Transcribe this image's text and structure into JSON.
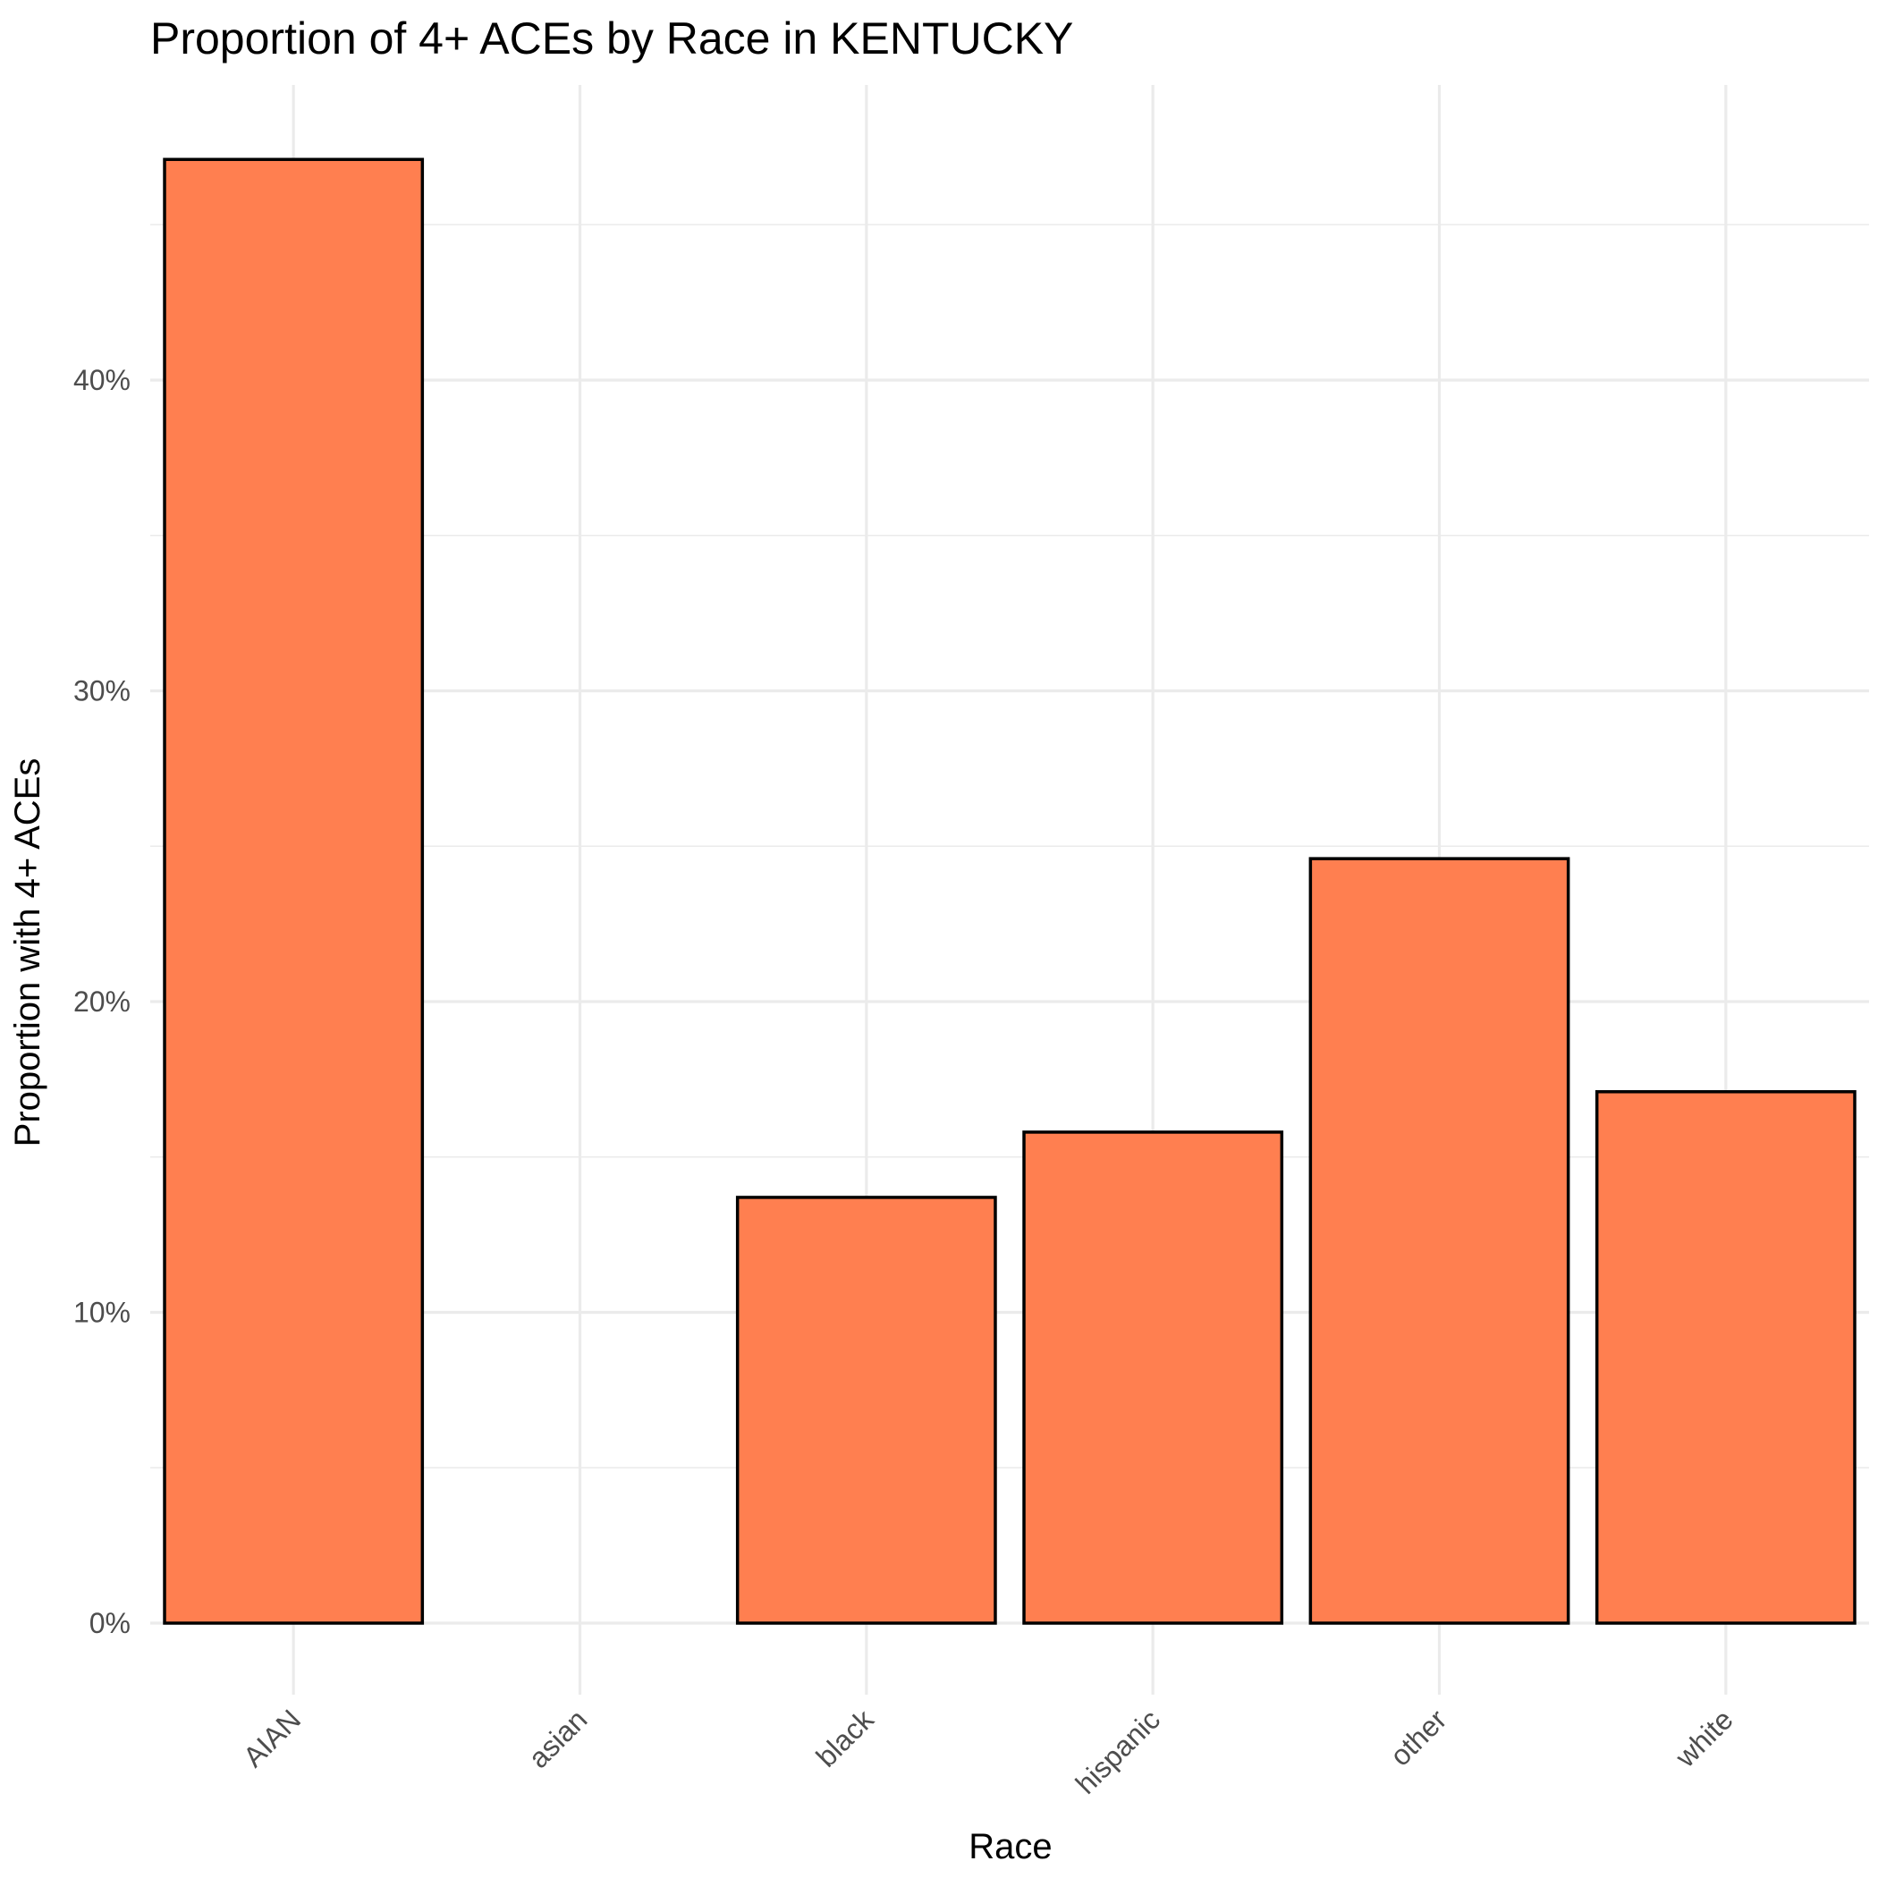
{
  "chart_data": {
    "type": "bar",
    "title": "Proportion of 4+ ACEs by Race in KENTUCKY",
    "xlabel": "Race",
    "ylabel": "Proportion with 4+ ACEs",
    "categories": [
      "AIAN",
      "asian",
      "black",
      "hispanic",
      "other",
      "white"
    ],
    "values": [
      0.471,
      0.0,
      0.137,
      0.158,
      0.246,
      0.171
    ],
    "ylim": [
      -0.02,
      0.495
    ],
    "y_ticks": [
      0,
      0.1,
      0.2,
      0.3,
      0.4
    ],
    "y_tick_labels": [
      "0%",
      "10%",
      "20%",
      "30%",
      "40%"
    ],
    "y_minor_ticks": [
      0.05,
      0.15,
      0.25,
      0.35,
      0.45
    ],
    "grid": true,
    "legend": "none",
    "bar_color": "#FF7F50",
    "bar_outline": "#000000"
  }
}
